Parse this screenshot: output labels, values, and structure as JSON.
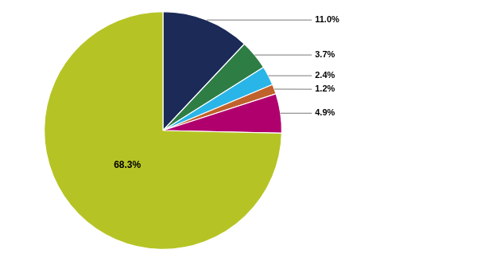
{
  "chart_data": {
    "type": "pie",
    "values": [
      11.0,
      3.7,
      2.4,
      1.2,
      4.9,
      68.3
    ],
    "value_labels": [
      "11.0%",
      "3.7%",
      "2.4%",
      "1.2%",
      "4.9%",
      "68.3%"
    ],
    "colors": [
      "#1b2a57",
      "#2e7d45",
      "#29b5e8",
      "#c0622b",
      "#b0006e",
      "#b5c424"
    ],
    "data_labels": true
  }
}
